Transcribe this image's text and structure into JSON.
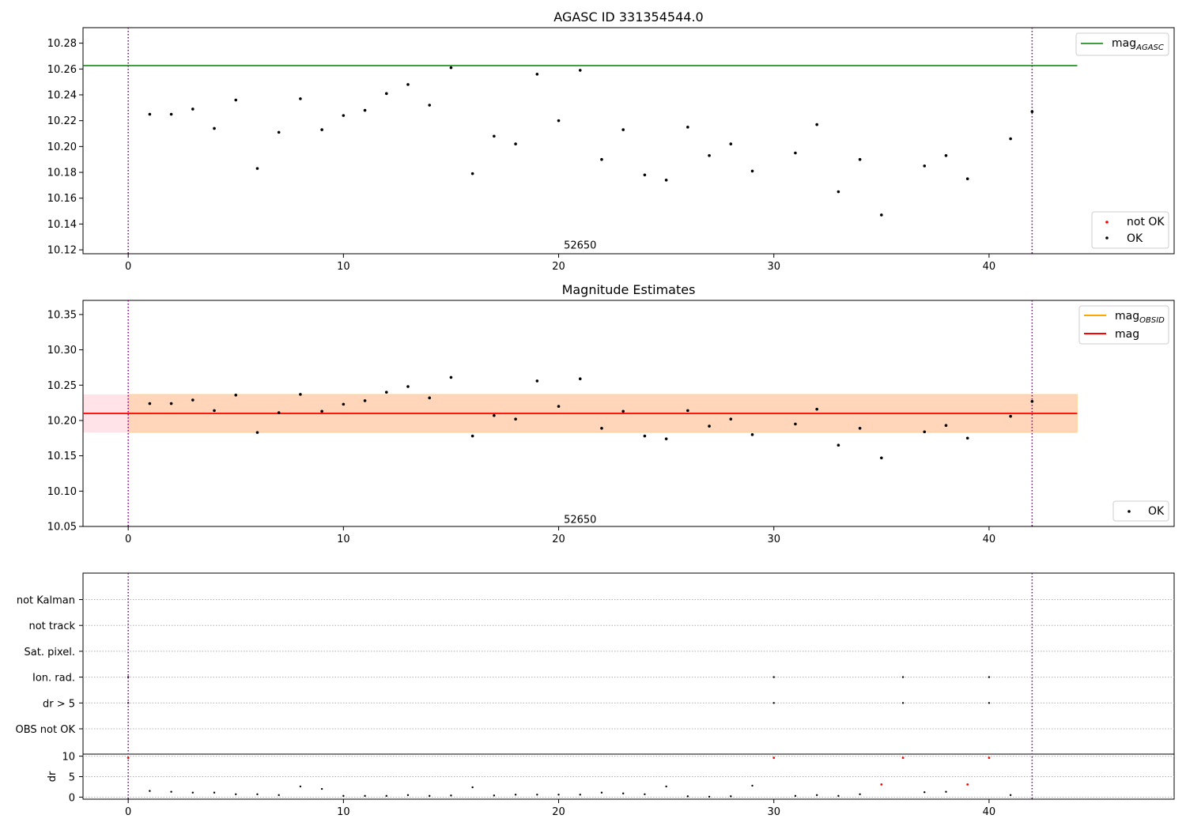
{
  "colors": {
    "ok": "#000000",
    "not_ok": "#ff0000",
    "mag_agasc": "#008000",
    "mag_obsid": "#ffa500",
    "mag": "#ff0000",
    "vline": "#800080",
    "band_outer": "#ffc0cb",
    "band_inner": "#ffa500"
  },
  "chart_data": [
    {
      "type": "scatter",
      "title": "AGASC ID 331354544.0",
      "xlim": [
        -2.1,
        48.6
      ],
      "ylim": [
        10.117,
        10.292
      ],
      "x_ticks": [
        0,
        10,
        20,
        30,
        40
      ],
      "y_ticks": [
        10.12,
        10.14,
        10.16,
        10.18,
        10.2,
        10.22,
        10.24,
        10.26,
        10.28
      ],
      "y_tick_labels": [
        "10.12",
        "10.14",
        "10.16",
        "10.18",
        "10.20",
        "10.22",
        "10.24",
        "10.26",
        "10.28"
      ],
      "annotation": {
        "text": "52650",
        "x": 21,
        "y": 10.121
      },
      "vlines": [
        0,
        42
      ],
      "hline": {
        "name_main": "mag",
        "name_sub": "AGASC",
        "y": 10.2626,
        "x_range": [
          -2.1,
          44.1
        ]
      },
      "legend_lines": [
        {
          "label_main": "mag",
          "label_sub": "AGASC"
        }
      ],
      "legend_points": [
        {
          "label": "not OK"
        },
        {
          "label": "OK"
        }
      ],
      "series_ok": {
        "x": [
          1,
          2,
          3,
          4,
          5,
          6,
          7,
          8,
          9,
          10,
          11,
          12,
          13,
          14,
          15,
          16,
          17,
          18,
          19,
          20,
          21,
          22,
          23,
          24,
          25,
          26,
          27,
          28,
          29,
          31,
          32,
          33,
          34,
          35,
          37,
          38,
          39,
          41,
          42
        ],
        "y": [
          10.225,
          10.225,
          10.229,
          10.214,
          10.236,
          10.183,
          10.211,
          10.237,
          10.213,
          10.224,
          10.228,
          10.241,
          10.248,
          10.232,
          10.261,
          10.179,
          10.208,
          10.202,
          10.256,
          10.22,
          10.259,
          10.19,
          10.213,
          10.178,
          10.174,
          10.215,
          10.193,
          10.202,
          10.181,
          10.195,
          10.217,
          10.165,
          10.19,
          10.147,
          10.185,
          10.193,
          10.175,
          10.206,
          10.227
        ]
      }
    },
    {
      "type": "scatter",
      "title": "Magnitude Estimates",
      "xlim": [
        -2.1,
        48.6
      ],
      "ylim": [
        10.05,
        10.37
      ],
      "x_ticks": [
        0,
        10,
        20,
        30,
        40
      ],
      "y_ticks": [
        10.05,
        10.1,
        10.15,
        10.2,
        10.25,
        10.3,
        10.35
      ],
      "y_tick_labels": [
        "10.05",
        "10.10",
        "10.15",
        "10.20",
        "10.25",
        "10.30",
        "10.35"
      ],
      "annotation": {
        "text": "52650",
        "x": 21,
        "y": 10.055
      },
      "vlines": [
        0,
        42
      ],
      "band_outer": {
        "x_range": [
          -2.1,
          0
        ],
        "y_range": [
          10.183,
          10.237
        ]
      },
      "band_inner": {
        "x_range": [
          0,
          44.1
        ],
        "y_range": [
          10.183,
          10.237
        ]
      },
      "hline_mag_obsid": {
        "y": 10.21,
        "x_range": [
          -2.1,
          44.1
        ]
      },
      "hline_mag": {
        "y": 10.21,
        "x_range": [
          -2.1,
          44.1
        ]
      },
      "legend_lines": [
        {
          "label_main": "mag",
          "label_sub": "OBSID"
        },
        {
          "label_main": "mag",
          "label_sub": ""
        }
      ],
      "legend_points": [
        {
          "label": "OK"
        }
      ],
      "series_ok": {
        "x": [
          1,
          2,
          3,
          4,
          5,
          6,
          7,
          8,
          9,
          10,
          11,
          12,
          13,
          14,
          15,
          16,
          17,
          18,
          19,
          20,
          21,
          22,
          23,
          24,
          25,
          26,
          27,
          28,
          29,
          31,
          32,
          33,
          34,
          35,
          37,
          38,
          39,
          41,
          42
        ],
        "y": [
          10.224,
          10.224,
          10.229,
          10.214,
          10.236,
          10.183,
          10.211,
          10.237,
          10.213,
          10.223,
          10.228,
          10.24,
          10.248,
          10.232,
          10.261,
          10.178,
          10.207,
          10.202,
          10.256,
          10.22,
          10.259,
          10.189,
          10.213,
          10.178,
          10.174,
          10.214,
          10.192,
          10.202,
          10.18,
          10.195,
          10.216,
          10.165,
          10.189,
          10.147,
          10.184,
          10.193,
          10.175,
          10.206,
          10.227
        ]
      }
    },
    {
      "type": "scatter",
      "xlim": [
        -2.1,
        48.6
      ],
      "x_ticks": [
        0,
        10,
        20,
        30,
        40
      ],
      "vlines": [
        0,
        42
      ],
      "flag_categories": [
        "OBS not OK",
        "dr > 5",
        "Ion. rad.",
        "Sat. pixel.",
        "not track",
        "not Kalman"
      ],
      "flags": [
        {
          "category": "dr > 5",
          "x": [
            0,
            30,
            36,
            40
          ]
        },
        {
          "category": "Ion. rad.",
          "x": [
            0,
            30,
            36,
            40
          ]
        }
      ],
      "dr_ylabel": "dr",
      "dr_ylim": [
        -0.5,
        10.5
      ],
      "dr_y_ticks": [
        0,
        5,
        10
      ],
      "dr_y_tick_labels": [
        "0",
        "5",
        "10"
      ],
      "dr_ok": {
        "x": [
          1,
          2,
          3,
          4,
          5,
          6,
          7,
          8,
          9,
          10,
          11,
          12,
          13,
          14,
          15,
          16,
          17,
          18,
          19,
          20,
          21,
          22,
          23,
          24,
          25,
          26,
          27,
          28,
          29,
          31,
          32,
          33,
          34,
          37,
          38,
          41
        ],
        "y": [
          1.5,
          1.3,
          1.1,
          1.1,
          0.7,
          0.7,
          0.5,
          2.6,
          2.0,
          0.3,
          0.3,
          0.3,
          0.5,
          0.3,
          0.4,
          2.4,
          0.4,
          0.6,
          0.6,
          0.6,
          0.6,
          1.1,
          0.9,
          0.7,
          2.6,
          0.2,
          0.1,
          0.2,
          2.8,
          0.3,
          0.5,
          0.3,
          0.7,
          1.2,
          1.3,
          0.5
        ]
      },
      "dr_not_ok": {
        "x": [
          0,
          30,
          35,
          36,
          39,
          40
        ],
        "y": [
          9.6,
          9.6,
          3.1,
          9.6,
          3.1,
          9.6
        ]
      }
    }
  ]
}
